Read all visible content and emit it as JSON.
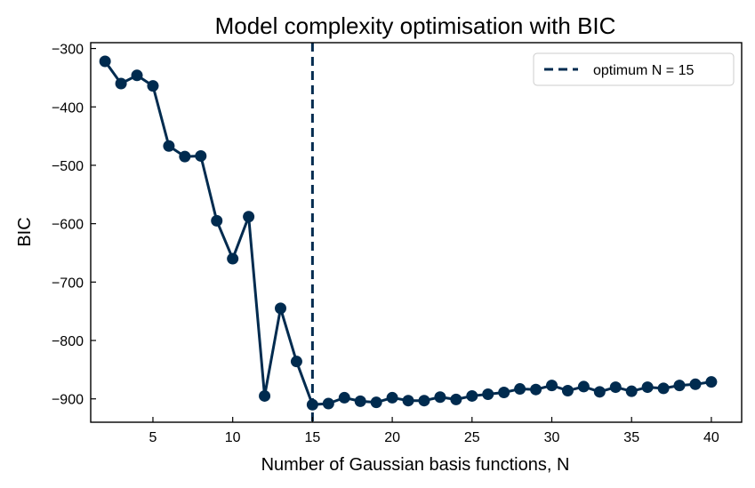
{
  "colors": {
    "series": "#002b4f",
    "axes": "#000000",
    "background": "#ffffff"
  },
  "chart_data": {
    "type": "line",
    "title": "Model complexity optimisation with BIC",
    "xlabel": "Number of Gaussian basis functions, N",
    "ylabel": "BIC",
    "xlim": [
      1.1,
      41.9
    ],
    "ylim": [
      -940,
      -290
    ],
    "xticks": [
      5,
      10,
      15,
      20,
      25,
      30,
      35,
      40
    ],
    "yticks": [
      -300,
      -400,
      -500,
      -600,
      -700,
      -800,
      -900
    ],
    "grid": false,
    "legend": {
      "placement": "top-right",
      "entries": [
        {
          "label": "optimum N = 15",
          "style": "dashed-line"
        }
      ]
    },
    "optimum": {
      "x": 15,
      "label": "optimum N = 15"
    },
    "series": [
      {
        "x": [
          2,
          3,
          4,
          5,
          6,
          7,
          8,
          9,
          10,
          11,
          12,
          13,
          14,
          15,
          16,
          17,
          18,
          19,
          20,
          21,
          22,
          23,
          24,
          25,
          26,
          27,
          28,
          29,
          30,
          31,
          32,
          33,
          34,
          35,
          36,
          37,
          38,
          39,
          40
        ],
        "values": [
          -322,
          -360,
          -346,
          -364,
          -467,
          -485,
          -484,
          -595,
          -660,
          -588,
          -895,
          -745,
          -836,
          -910,
          -908,
          -898,
          -904,
          -906,
          -898,
          -903,
          -903,
          -897,
          -901,
          -895,
          -892,
          -889,
          -883,
          -884,
          -877,
          -886,
          -879,
          -888,
          -880,
          -887,
          -880,
          -882,
          -877,
          -875,
          -871
        ]
      }
    ]
  }
}
